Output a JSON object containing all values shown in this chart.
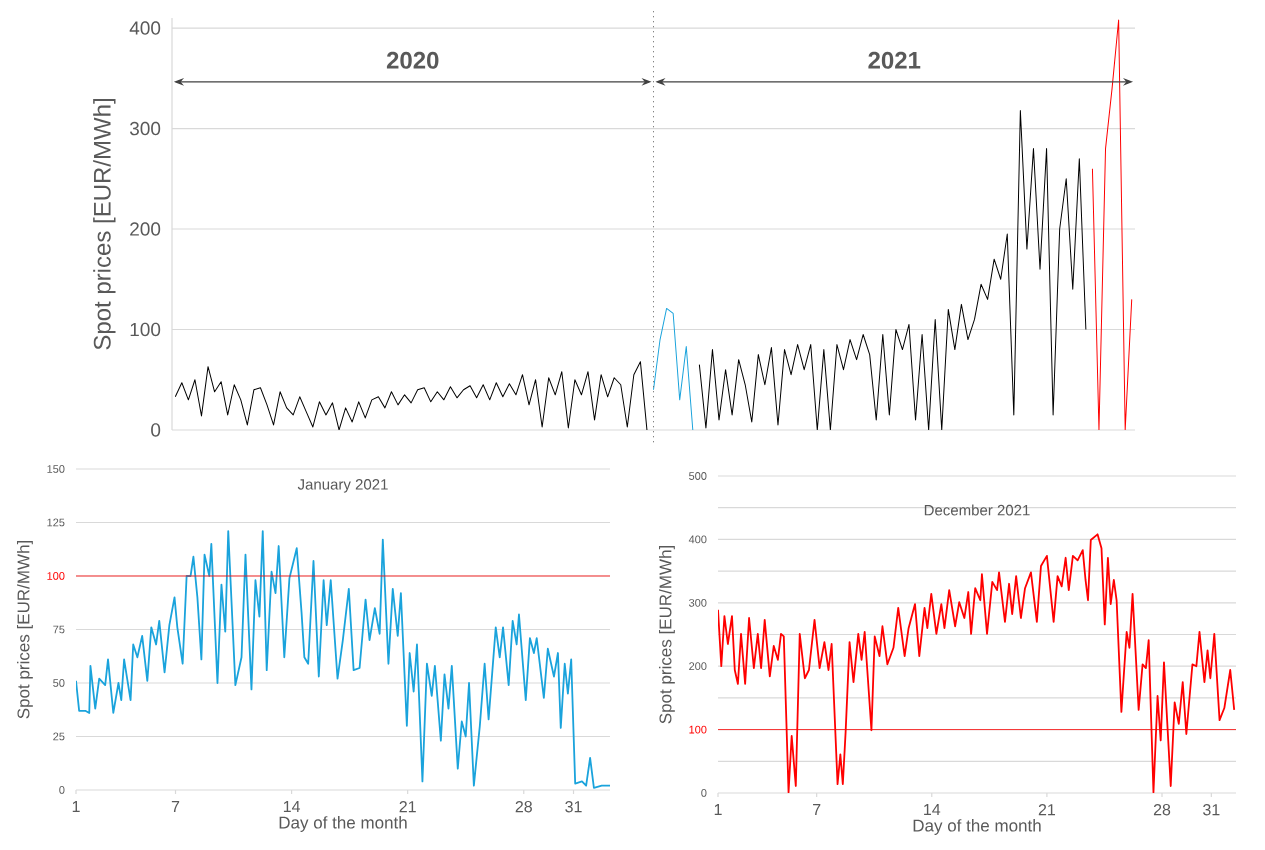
{
  "chart_data": [
    {
      "type": "line",
      "ylabel": "Spot prices [EUR/MWh]",
      "annotations": [
        "2020",
        "2021"
      ],
      "ylim": [
        0,
        410
      ],
      "yticks": [
        0,
        100,
        200,
        300,
        400
      ],
      "grid": "y",
      "tick_labels": "y",
      "categories": [
        null,
        null,
        null,
        null,
        null,
        null,
        null,
        null,
        null,
        null,
        null,
        null,
        null,
        null,
        null,
        null,
        null,
        null,
        null,
        null,
        null,
        null,
        null,
        null,
        null,
        null,
        null,
        null,
        null,
        null,
        null,
        null,
        null,
        null,
        null,
        null,
        null,
        null,
        null,
        null,
        null,
        null,
        null,
        null,
        null,
        null,
        null,
        null,
        null,
        null,
        null,
        null,
        null,
        null,
        null,
        null,
        null,
        null,
        null,
        null,
        null,
        null,
        null,
        null,
        null,
        null,
        null,
        null,
        null,
        null,
        null,
        null,
        null,
        null,
        null,
        null,
        null,
        null,
        null,
        null,
        null,
        null,
        null,
        null,
        null,
        null,
        null,
        null,
        null,
        null,
        null,
        null,
        null,
        null,
        null,
        null,
        null,
        null,
        null,
        null,
        null,
        null,
        null,
        null,
        null,
        null,
        null,
        null,
        null,
        null,
        null,
        null,
        null,
        null,
        null,
        null,
        null,
        null,
        null,
        null,
        null,
        null,
        null,
        null,
        null,
        null,
        null,
        null,
        null,
        null,
        null,
        null,
        null,
        null,
        null,
        null,
        null,
        null,
        null,
        null,
        null,
        null,
        null,
        null,
        null,
        null,
        null
      ],
      "series": [
        {
          "color": "#000000",
          "values": [
            33,
            47,
            30,
            50,
            14,
            63,
            38,
            48,
            15,
            45,
            30,
            5,
            40,
            42,
            25,
            5,
            38,
            22,
            15,
            33,
            18,
            3,
            28,
            15,
            27,
            0,
            22,
            8,
            28,
            12,
            30,
            33,
            22,
            38,
            25,
            35,
            27,
            40,
            42,
            28,
            38,
            30,
            43,
            32,
            40,
            44,
            32,
            45,
            30,
            47,
            33,
            46,
            35,
            55,
            25,
            50,
            3,
            52,
            35,
            58,
            2,
            50,
            35,
            58,
            10,
            55,
            33,
            52,
            45,
            3,
            55,
            68,
            0,
            null,
            null,
            null,
            null,
            null,
            null,
            null,
            65,
            2,
            80,
            10,
            60,
            15,
            70,
            45,
            8,
            75,
            45,
            82,
            5,
            80,
            55,
            85,
            60,
            85,
            0,
            80,
            0,
            85,
            60,
            90,
            70,
            95,
            75,
            10,
            95,
            15,
            100,
            80,
            105,
            10,
            95,
            0,
            110,
            0,
            120,
            80,
            125,
            90,
            110,
            145,
            130,
            170,
            150,
            195,
            15,
            318,
            180,
            280,
            160,
            280,
            15,
            200,
            250,
            140,
            270,
            100,
            null,
            null,
            null,
            null,
            null,
            null,
            null
          ]
        },
        {
          "color": "#1aa3dc",
          "values": [
            null,
            null,
            null,
            null,
            null,
            null,
            null,
            null,
            null,
            null,
            null,
            null,
            null,
            null,
            null,
            null,
            null,
            null,
            null,
            null,
            null,
            null,
            null,
            null,
            null,
            null,
            null,
            null,
            null,
            null,
            null,
            null,
            null,
            null,
            null,
            null,
            null,
            null,
            null,
            null,
            null,
            null,
            null,
            null,
            null,
            null,
            null,
            null,
            null,
            null,
            null,
            null,
            null,
            null,
            null,
            null,
            null,
            null,
            null,
            null,
            null,
            null,
            null,
            null,
            null,
            null,
            null,
            null,
            null,
            null,
            null,
            null,
            null,
            40,
            90,
            121,
            116,
            30,
            83,
            0,
            null,
            null,
            null,
            null,
            null,
            null,
            null,
            null,
            null,
            null,
            null,
            null,
            null,
            null,
            null,
            null,
            null,
            null,
            null,
            null,
            null,
            null,
            null,
            null,
            null,
            null,
            null,
            null,
            null,
            null,
            null,
            null,
            null,
            null,
            null,
            null,
            null,
            null,
            null,
            null,
            null,
            null,
            null,
            null,
            null,
            null,
            null,
            null,
            null,
            null,
            null,
            null,
            null,
            null,
            null,
            null,
            null,
            null,
            null,
            null,
            null,
            null,
            null,
            null,
            null,
            null,
            null
          ]
        },
        {
          "color": "#ff0000",
          "values": [
            null,
            null,
            null,
            null,
            null,
            null,
            null,
            null,
            null,
            null,
            null,
            null,
            null,
            null,
            null,
            null,
            null,
            null,
            null,
            null,
            null,
            null,
            null,
            null,
            null,
            null,
            null,
            null,
            null,
            null,
            null,
            null,
            null,
            null,
            null,
            null,
            null,
            null,
            null,
            null,
            null,
            null,
            null,
            null,
            null,
            null,
            null,
            null,
            null,
            null,
            null,
            null,
            null,
            null,
            null,
            null,
            null,
            null,
            null,
            null,
            null,
            null,
            null,
            null,
            null,
            null,
            null,
            null,
            null,
            null,
            null,
            null,
            null,
            null,
            null,
            null,
            null,
            null,
            null,
            null,
            null,
            null,
            null,
            null,
            null,
            null,
            null,
            null,
            null,
            null,
            null,
            null,
            null,
            null,
            null,
            null,
            null,
            null,
            null,
            null,
            null,
            null,
            null,
            null,
            null,
            null,
            null,
            null,
            null,
            null,
            null,
            null,
            null,
            null,
            null,
            null,
            null,
            null,
            null,
            null,
            null,
            null,
            null,
            null,
            null,
            null,
            null,
            null,
            null,
            null,
            null,
            null,
            null,
            null,
            null,
            null,
            null,
            null,
            null,
            null,
            260,
            0,
            280,
            340,
            408,
            0,
            130
          ]
        }
      ]
    },
    {
      "type": "line",
      "title": "January 2021",
      "xlabel": "Day of the month",
      "ylabel": "Spot prices [EUR/MWh]",
      "xlim": [
        1,
        33.2
      ],
      "ylim": [
        0,
        150
      ],
      "xticks": [
        1,
        7,
        14,
        21,
        28,
        31
      ],
      "yticks": [
        0,
        25,
        50,
        75,
        100,
        125,
        150
      ],
      "grid": "y",
      "x": [
        1.0,
        1.19,
        1.56,
        1.8,
        1.87,
        2.16,
        2.4,
        2.76,
        2.93,
        3.25,
        3.56,
        3.73,
        3.9,
        4.29,
        4.45,
        4.7,
        4.99,
        5.3,
        5.54,
        5.83,
        6.02,
        6.34,
        6.63,
        6.94,
        7.11,
        7.43,
        7.67,
        7.91,
        8.08,
        8.32,
        8.56,
        8.75,
        9.04,
        9.16,
        9.53,
        9.77,
        10.0,
        10.18,
        10.61,
        10.98,
        11.22,
        11.58,
        11.82,
        12.06,
        12.26,
        12.5,
        12.79,
        13.03,
        13.22,
        13.56,
        13.87,
        14.31,
        14.6,
        14.77,
        15.0,
        15.32,
        15.64,
        15.93,
        16.12,
        16.36,
        16.77,
        17.09,
        17.45,
        17.74,
        18.1,
        18.46,
        18.7,
        19.02,
        19.31,
        19.5,
        19.84,
        20.1,
        20.4,
        20.59,
        20.95,
        21.12,
        21.36,
        21.56,
        21.89,
        22.16,
        22.45,
        22.64,
        23.0,
        23.22,
        23.46,
        23.66,
        24.02,
        24.26,
        24.5,
        24.7,
        24.99,
        25.35,
        25.64,
        25.88,
        26.31,
        26.55,
        26.75,
        27.09,
        27.33,
        27.57,
        27.71,
        28.12,
        28.37,
        28.61,
        28.78,
        29.21,
        29.45,
        29.82,
        30.06,
        30.23,
        30.47,
        30.66,
        30.86,
        31.1,
        31.51,
        31.76,
        32.0,
        32.23,
        32.7,
        33.2
      ],
      "series": [
        {
          "color": "#1aa3dc",
          "values": [
            51,
            37,
            37,
            36,
            58,
            38,
            52,
            49,
            61,
            36,
            50,
            42,
            61,
            42,
            68,
            62,
            72,
            51,
            76,
            68,
            79,
            55,
            77,
            90,
            76,
            59,
            100,
            100,
            109,
            90,
            61,
            110,
            100,
            115,
            50,
            96,
            74,
            121,
            49,
            62,
            110,
            47,
            98,
            81,
            121,
            56,
            102,
            92,
            114,
            62,
            99,
            113,
            83,
            62,
            59,
            107,
            53,
            98,
            77,
            98,
            52,
            70,
            94,
            56,
            57,
            89,
            70,
            85,
            73,
            117,
            59,
            94,
            72,
            92,
            30,
            64,
            46,
            68,
            4,
            59,
            44,
            58,
            23,
            54,
            38,
            58,
            10,
            32,
            25,
            50,
            2,
            30,
            59,
            33,
            76,
            62,
            76,
            49,
            79,
            68,
            82,
            42,
            71,
            64,
            71,
            43,
            66,
            53,
            64,
            29,
            59,
            45,
            61,
            3,
            4,
            2,
            15,
            1,
            2,
            2
          ]
        }
      ],
      "ref_lines": [
        {
          "axis": "y",
          "value": 100,
          "color": "#ff0000"
        }
      ]
    },
    {
      "type": "line",
      "title": "December 2021",
      "xlabel": "Day of the month",
      "ylabel": "Spot prices [EUR/MWh]",
      "xlim": [
        1,
        32.5
      ],
      "ylim": [
        0,
        500
      ],
      "xticks": [
        1,
        7,
        14,
        21,
        28,
        31
      ],
      "yticks": [
        0,
        {
          "value": 50,
          "label": null
        },
        100,
        {
          "value": 150,
          "label": null
        },
        200,
        {
          "value": 250,
          "label": null
        },
        300,
        {
          "value": 350,
          "label": null
        },
        400,
        {
          "value": 450,
          "label": null
        },
        500
      ],
      "grid": "y",
      "x": [
        1.0,
        1.2,
        1.39,
        1.6,
        1.85,
        2.02,
        2.21,
        2.4,
        2.65,
        2.89,
        3.18,
        3.42,
        3.62,
        3.84,
        4.15,
        4.39,
        4.64,
        4.83,
        5.0,
        5.29,
        5.48,
        5.73,
        5.97,
        6.28,
        6.53,
        6.87,
        7.18,
        7.47,
        7.72,
        7.91,
        8.27,
        8.44,
        8.59,
        8.76,
        9.0,
        9.24,
        9.53,
        9.73,
        9.92,
        10.33,
        10.53,
        10.82,
        11.0,
        11.3,
        11.67,
        11.96,
        12.35,
        12.59,
        12.98,
        13.24,
        13.56,
        13.73,
        13.97,
        14.28,
        14.58,
        14.77,
        15.06,
        15.42,
        15.67,
        15.98,
        16.22,
        16.39,
        16.64,
        16.95,
        17.05,
        17.36,
        17.68,
        17.97,
        18.09,
        18.45,
        18.7,
        18.89,
        19.13,
        19.42,
        19.67,
        20.03,
        20.39,
        20.64,
        21.0,
        21.41,
        21.65,
        21.9,
        22.14,
        22.33,
        22.58,
        22.87,
        23.18,
        23.35,
        23.5,
        23.67,
        24.08,
        24.32,
        24.52,
        24.71,
        24.88,
        25.07,
        25.24,
        25.53,
        25.85,
        26.02,
        26.21,
        26.58,
        26.82,
        27.02,
        27.19,
        27.48,
        27.73,
        27.92,
        28.12,
        28.53,
        28.77,
        29.02,
        29.26,
        29.48,
        29.85,
        30.09,
        30.28,
        30.58,
        30.77,
        30.94,
        31.18,
        31.5,
        31.79,
        32.15,
        32.39
      ],
      "series": [
        {
          "color": "#ff0000",
          "values": [
            289,
            200,
            279,
            235,
            279,
            194,
            172,
            251,
            172,
            276,
            197,
            251,
            197,
            273,
            184,
            232,
            210,
            251,
            247,
            1,
            90,
            11,
            251,
            181,
            194,
            273,
            197,
            238,
            194,
            235,
            14,
            61,
            14,
            96,
            238,
            175,
            251,
            210,
            254,
            99,
            247,
            216,
            263,
            203,
            229,
            292,
            216,
            260,
            298,
            216,
            292,
            260,
            314,
            251,
            298,
            260,
            320,
            263,
            301,
            276,
            317,
            251,
            323,
            304,
            345,
            251,
            333,
            320,
            348,
            270,
            330,
            282,
            342,
            276,
            323,
            348,
            270,
            358,
            374,
            270,
            342,
            326,
            371,
            320,
            374,
            367,
            383,
            336,
            304,
            399,
            408,
            386,
            266,
            371,
            298,
            336,
            304,
            128,
            254,
            229,
            314,
            131,
            203,
            197,
            241,
            1,
            153,
            83,
            206,
            11,
            143,
            109,
            175,
            93,
            203,
            200,
            254,
            175,
            225,
            181,
            251,
            115,
            134,
            194,
            131
          ]
        }
      ],
      "ref_lines": [
        {
          "axis": "y",
          "value": 100,
          "color": "#ff0000"
        }
      ]
    }
  ]
}
